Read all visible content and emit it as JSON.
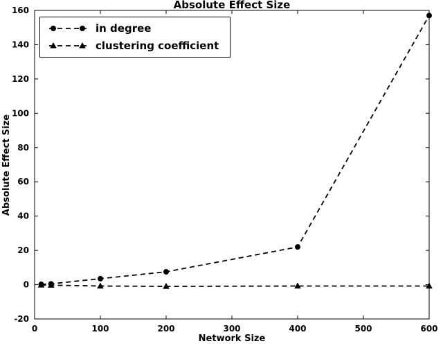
{
  "chart_data": {
    "type": "line",
    "title": "Absolute Effect Size",
    "xlabel": "Network Size",
    "ylabel": "Absolute Effect Size",
    "xlim": [
      0,
      600
    ],
    "ylim": [
      -20,
      160
    ],
    "xticks": [
      "0",
      "100",
      "200",
      "300",
      "400",
      "500",
      "600"
    ],
    "yticks": [
      "-20",
      "0",
      "20",
      "40",
      "60",
      "80",
      "100",
      "120",
      "140",
      "160"
    ],
    "grid": false,
    "legend_position": "upper left",
    "line_style": "dashed",
    "line_color": "#000000",
    "x": [
      10,
      25,
      100,
      200,
      400,
      600
    ],
    "series": [
      {
        "name": "in degree",
        "marker": "circle",
        "color": "#000000",
        "values": [
          0.2,
          0.5,
          3.5,
          7.5,
          22,
          157
        ]
      },
      {
        "name": "clustering coefficient",
        "marker": "triangle",
        "color": "#000000",
        "values": [
          -0.2,
          -0.3,
          -0.8,
          -1.0,
          -0.8,
          -0.8
        ]
      }
    ]
  }
}
